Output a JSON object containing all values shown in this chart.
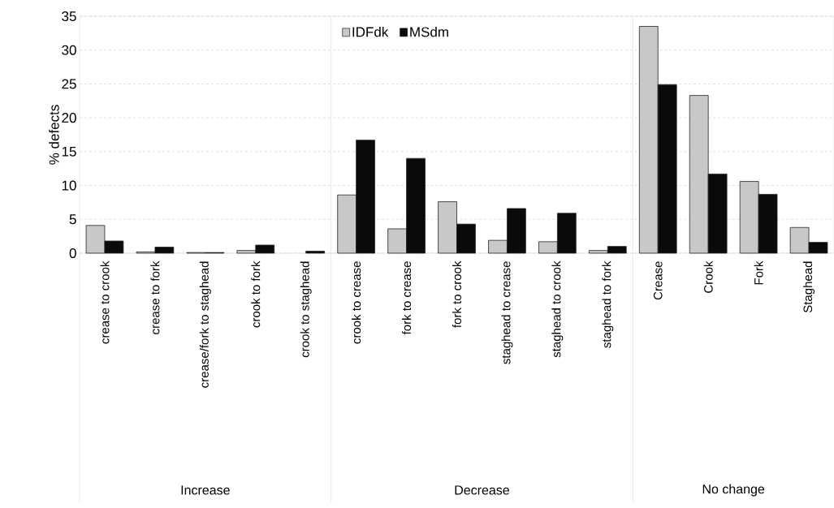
{
  "chart_data": {
    "type": "bar",
    "ylabel": "% defects",
    "categories": [
      "crease to crook",
      "crease to fork",
      "crease/fork to staghead",
      "crook to fork",
      "crook to staghead",
      "crook to crease",
      "fork to crease",
      "fork to crook",
      "staghead to crease",
      "staghead to crook",
      "staghead to fork",
      "Crease",
      "Crook",
      "Fork",
      "Staghead"
    ],
    "series": [
      {
        "name": "IDFdk",
        "color": "#c8c8c6",
        "values": [
          4.1,
          0.2,
          0.1,
          0.4,
          null,
          8.6,
          3.6,
          7.6,
          1.9,
          1.7,
          0.4,
          33.5,
          23.3,
          10.6,
          3.8
        ]
      },
      {
        "name": "MSdm",
        "color": "#0a0a0a",
        "values": [
          1.8,
          0.9,
          0.1,
          1.2,
          0.3,
          16.7,
          14.0,
          4.3,
          6.6,
          5.9,
          1.0,
          24.9,
          11.7,
          8.7,
          1.6
        ]
      }
    ],
    "ylim": [
      0,
      35
    ],
    "yticks": [
      0,
      5,
      10,
      15,
      20,
      25,
      30,
      35
    ],
    "grid": "y",
    "legend": "top",
    "annotations": [
      "Increase",
      "Decrease",
      "No change"
    ]
  }
}
